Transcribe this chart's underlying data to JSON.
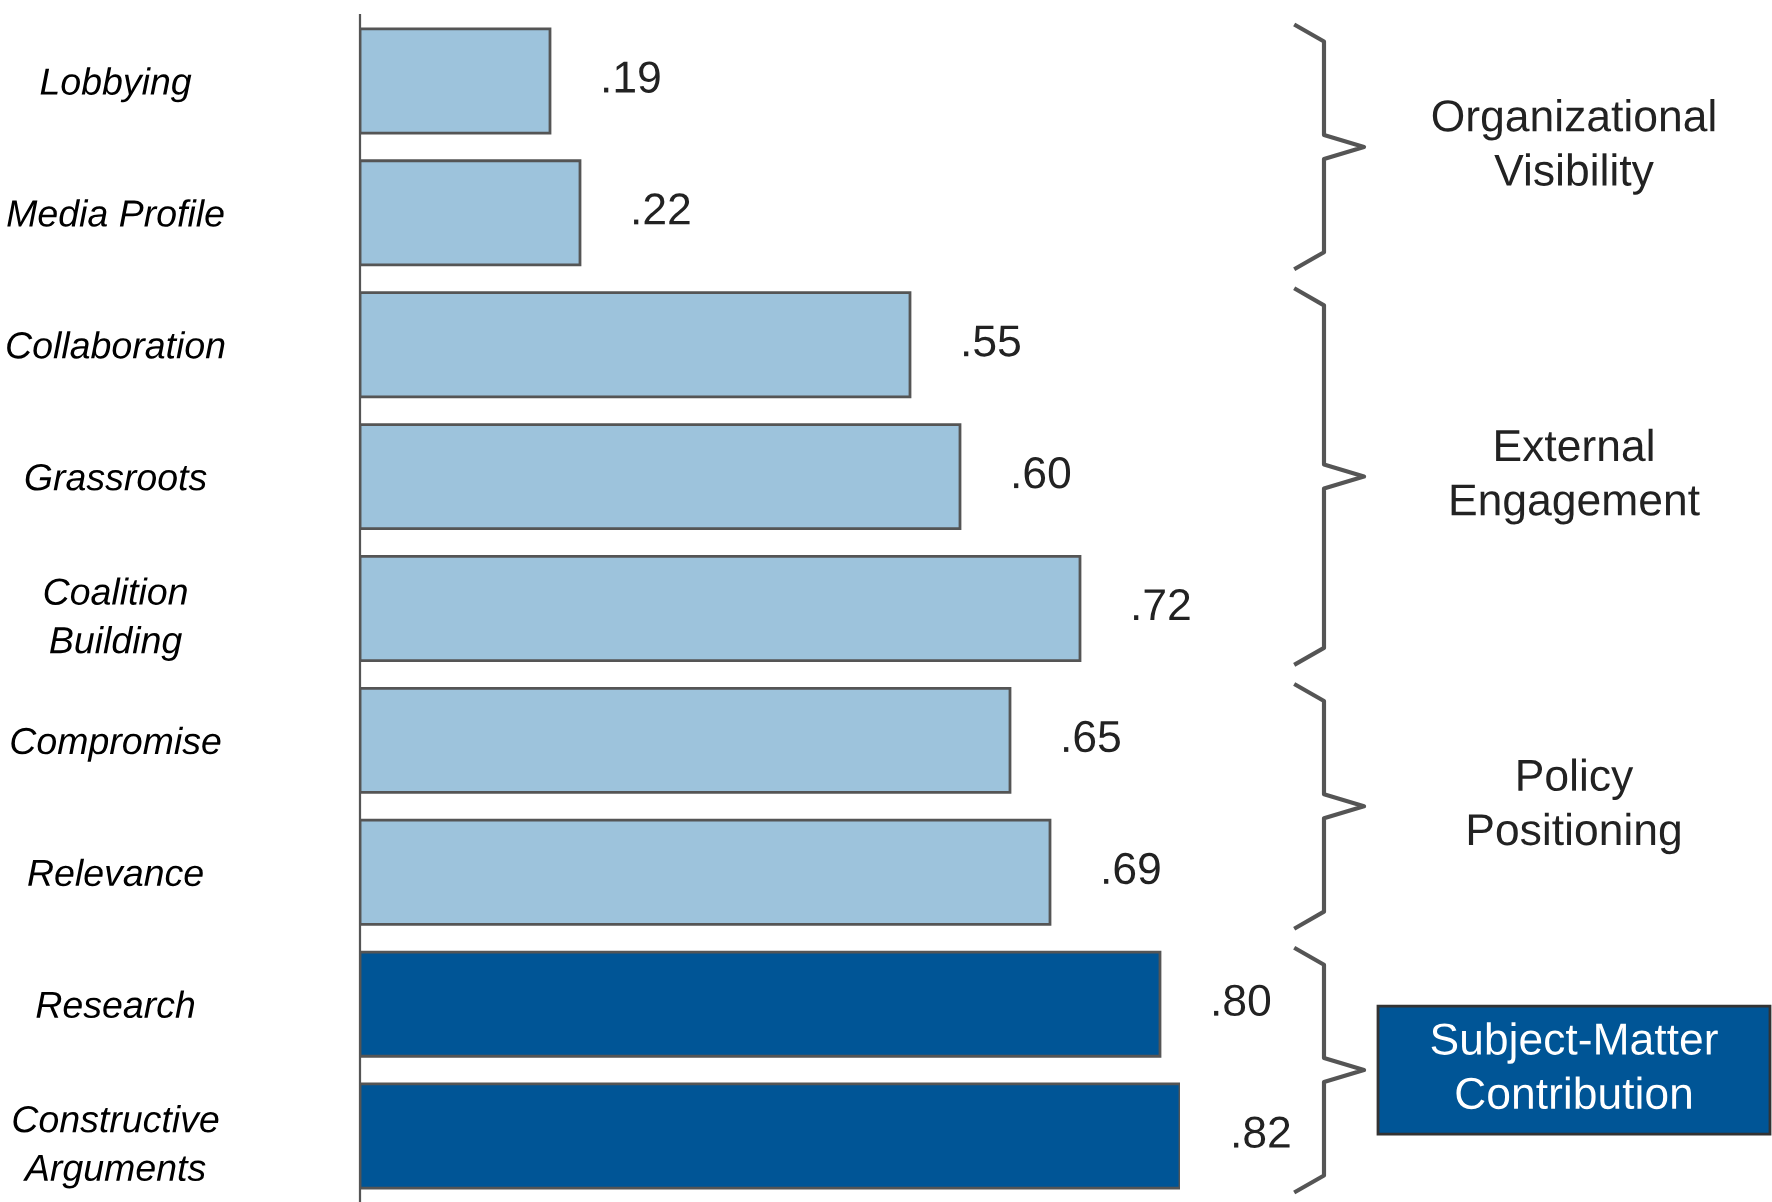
{
  "chart_data": {
    "type": "bar",
    "orientation": "horizontal",
    "categories": [
      "Lobbying",
      "Media Profile",
      "Collaboration",
      "Grassroots",
      "Coalition\nBuilding",
      "Compromise",
      "Relevance",
      "Research",
      "Constructive\nArguments"
    ],
    "values": [
      0.19,
      0.22,
      0.55,
      0.6,
      0.72,
      0.65,
      0.69,
      0.8,
      0.82
    ],
    "value_labels": [
      ".19",
      ".22",
      ".55",
      ".60",
      ".72",
      ".65",
      ".69",
      ".80",
      ".82"
    ],
    "colors": [
      "#9dc3dc",
      "#9dc3dc",
      "#9dc3dc",
      "#9dc3dc",
      "#9dc3dc",
      "#9dc3dc",
      "#9dc3dc",
      "#005596",
      "#005596"
    ],
    "annotations": [
      "Organizational\nVisibility",
      "External\nEngagement",
      "Policy\nPositioning",
      "Subject-Matter\nContribution"
    ],
    "grid": false,
    "legend": false
  }
}
